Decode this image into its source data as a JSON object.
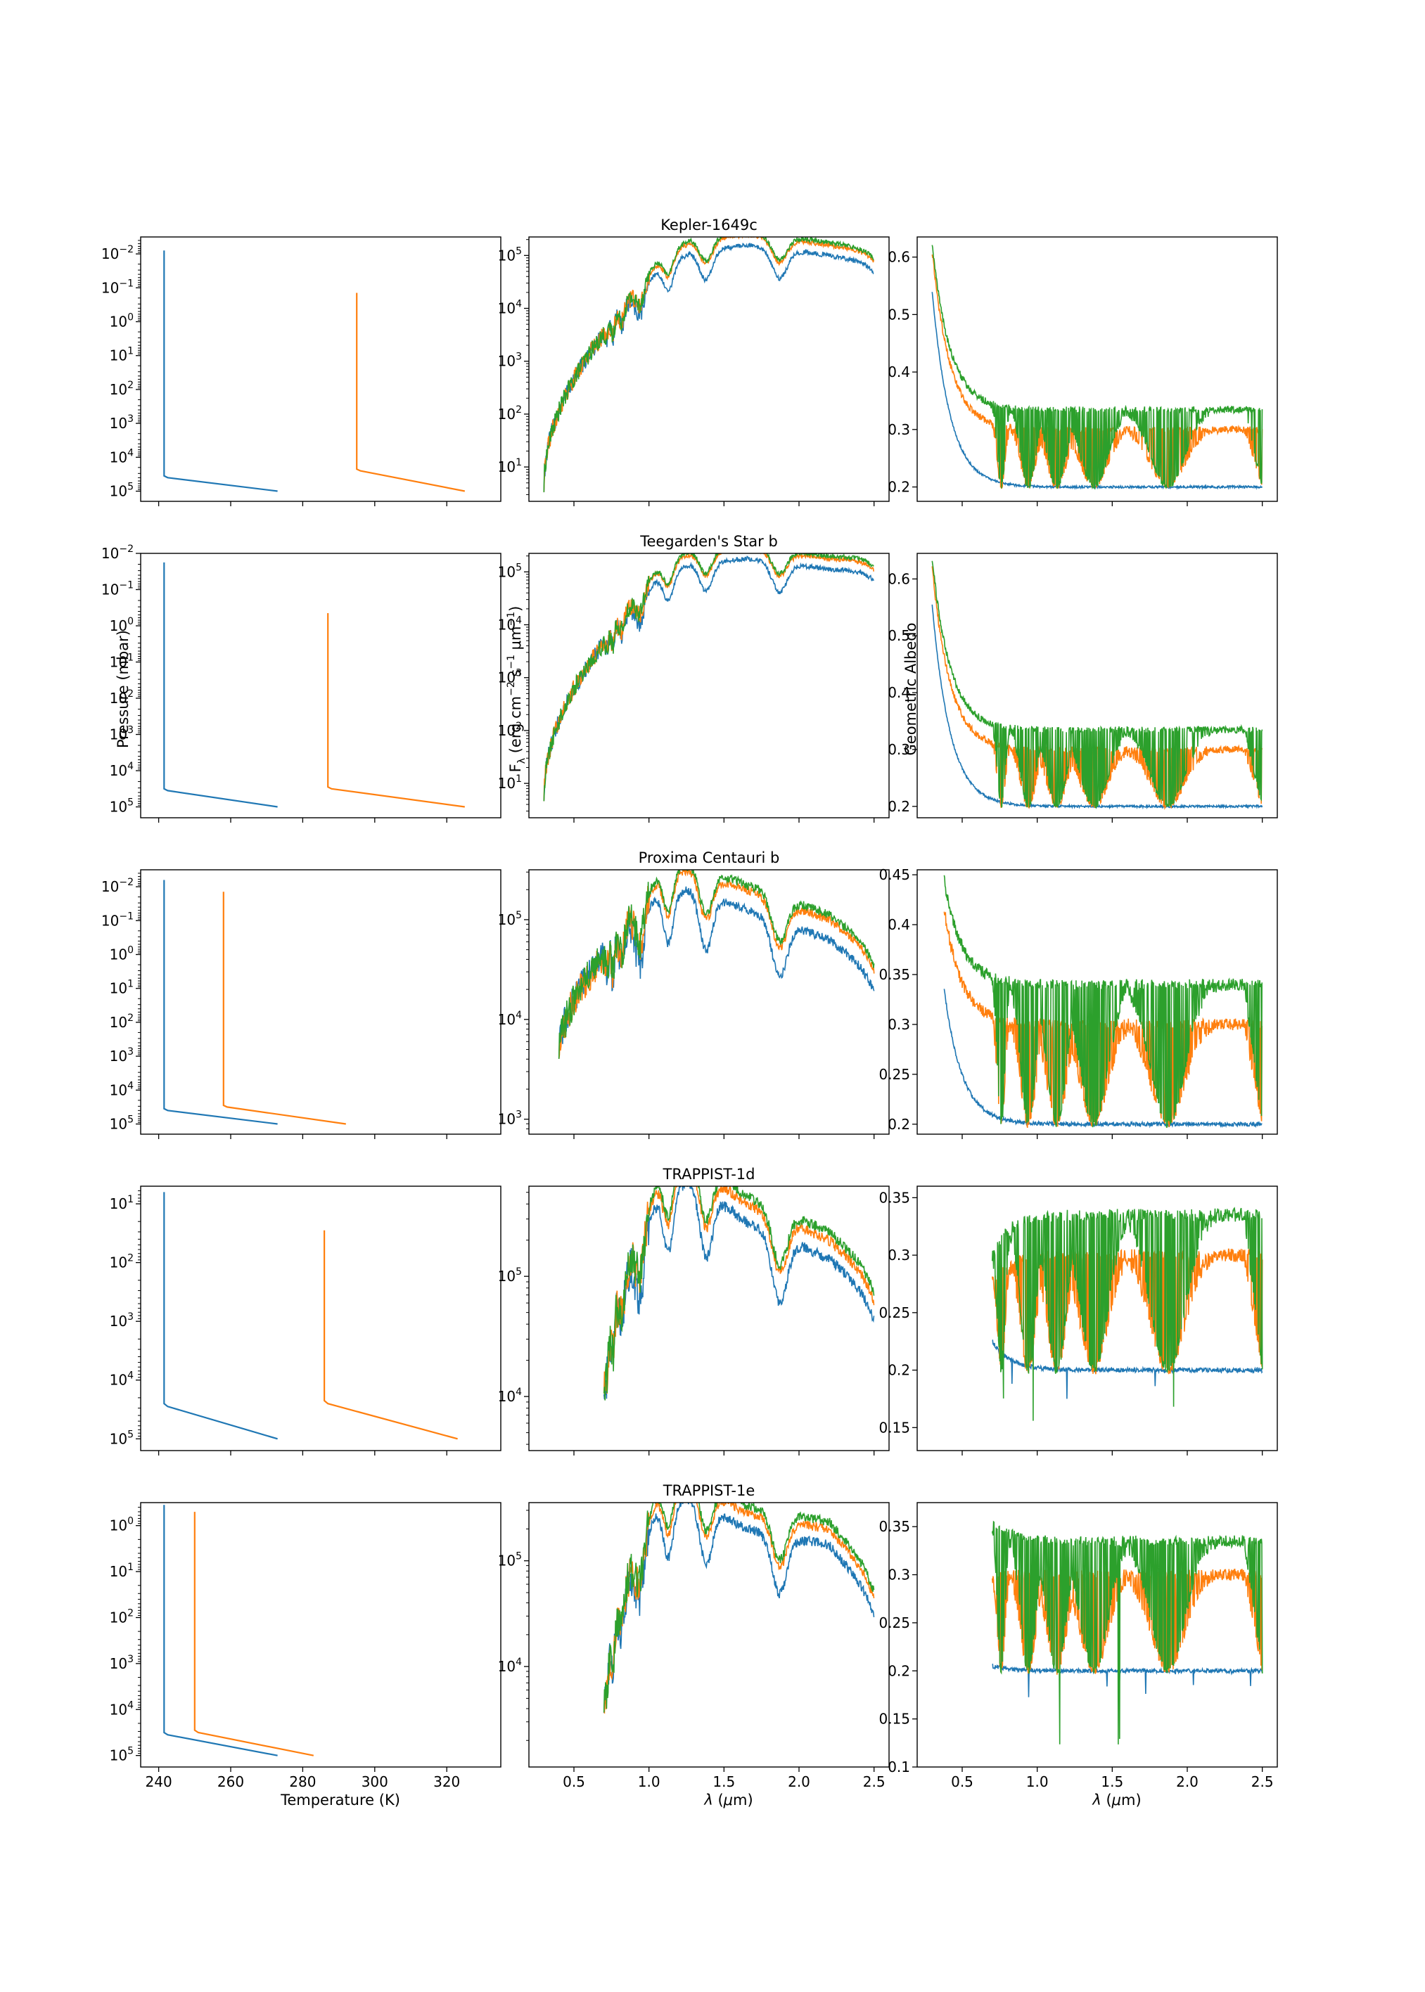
{
  "colors": {
    "series1": "#1f77b4",
    "series2": "#ff7f0e",
    "series3": "#2ca02c",
    "axes": "#000000"
  },
  "shared_labels": {
    "pressure_ylabel": "Pressure (mbar)",
    "flux_ylabel": "F_λ (erg cm^-2 s^-1 μm^-1)",
    "albedo_ylabel": "Geometric Albedo",
    "temperature_xlabel": "Temperature (K)",
    "wavelength_xlabel": "λ (μm)"
  },
  "chart_data": [
    {
      "row": 0,
      "col": 0,
      "type": "line",
      "title": "",
      "xlim": [
        235,
        335
      ],
      "ylog": true,
      "yinvert": true,
      "ylim_exp": [
        -2.5,
        5.3
      ],
      "yticks_exp": [
        -2,
        -1,
        0,
        1,
        2,
        3,
        4,
        5
      ],
      "xticks": [
        240,
        260,
        280,
        300,
        320
      ],
      "show_xticklabels": false,
      "series": [
        {
          "T": [
            241.5,
            241.5,
            242.5,
            273
          ],
          "p_exp": [
            -2.1,
            4.55,
            4.6,
            5
          ]
        },
        {
          "T": [
            295,
            295,
            296,
            325
          ],
          "p_exp": [
            -0.85,
            4.35,
            4.4,
            5
          ]
        }
      ]
    },
    {
      "row": 0,
      "col": 1,
      "type": "line",
      "title": "Kepler-1649c",
      "ylog": true,
      "xlim": [
        0.2,
        2.6
      ],
      "ylim_exp": [
        0.35,
        5.35
      ],
      "yticks_exp": [
        1,
        2,
        3,
        4,
        5
      ],
      "xticks": [
        0.5,
        1.0,
        1.5,
        2.0,
        2.5
      ],
      "show_xticklabels": false,
      "lam_min": 0.3,
      "y_start": 0.6,
      "peaks": [
        4.6,
        4.95,
        5.1,
        4.9,
        4.75
      ],
      "tail": 4.75,
      "bright": [
        0.1,
        0.3,
        0.35
      ]
    },
    {
      "row": 0,
      "col": 2,
      "type": "line",
      "title": "",
      "xlim": [
        0.2,
        2.6
      ],
      "ylim": [
        0.175,
        0.635
      ],
      "yticks": [
        0.2,
        0.3,
        0.4,
        0.5,
        0.6
      ],
      "xticks": [
        0.5,
        1.0,
        1.5,
        2.0,
        2.5
      ],
      "show_xticklabels": false,
      "lam_min": 0.3,
      "start": [
        0.54,
        0.61,
        0.62
      ],
      "band_top": [
        0.2,
        0.3,
        0.335
      ],
      "blue_dip": false
    },
    {
      "row": 1,
      "col": 0,
      "type": "line",
      "title": "",
      "xlim": [
        235,
        335
      ],
      "ylog": true,
      "yinvert": true,
      "ylim_exp": [
        -2.0,
        5.3
      ],
      "yticks_exp": [
        -2,
        -1,
        0,
        1,
        2,
        3,
        4,
        5
      ],
      "xticks": [
        240,
        260,
        280,
        300,
        320
      ],
      "show_xticklabels": false,
      "series": [
        {
          "T": [
            241.5,
            241.5,
            242.5,
            273
          ],
          "p_exp": [
            -1.75,
            4.5,
            4.55,
            5
          ]
        },
        {
          "T": [
            287,
            287,
            288,
            325
          ],
          "p_exp": [
            -0.35,
            4.45,
            4.5,
            5
          ]
        }
      ]
    },
    {
      "row": 1,
      "col": 1,
      "type": "line",
      "title": "Teegarden's Star b",
      "ylog": true,
      "xlim": [
        0.2,
        2.6
      ],
      "ylim_exp": [
        0.35,
        5.35
      ],
      "yticks_exp": [
        1,
        2,
        3,
        4,
        5
      ],
      "xticks": [
        0.5,
        1.0,
        1.5,
        2.0,
        2.5
      ],
      "show_xticklabels": false,
      "lam_min": 0.3,
      "y_start": 0.7,
      "peaks": [
        4.75,
        5.05,
        5.15,
        4.95,
        4.85
      ],
      "tail": 4.9,
      "bright": [
        0.1,
        0.3,
        0.35
      ]
    },
    {
      "row": 1,
      "col": 2,
      "type": "line",
      "title": "",
      "xlim": [
        0.2,
        2.6
      ],
      "ylim": [
        0.18,
        0.645
      ],
      "yticks": [
        0.2,
        0.3,
        0.4,
        0.5,
        0.6
      ],
      "xticks": [
        0.5,
        1.0,
        1.5,
        2.0,
        2.5
      ],
      "show_xticklabels": false,
      "lam_min": 0.3,
      "start": [
        0.555,
        0.62,
        0.635
      ],
      "band_top": [
        0.2,
        0.3,
        0.335
      ],
      "blue_dip": false
    },
    {
      "row": 2,
      "col": 0,
      "type": "line",
      "title": "",
      "xlim": [
        235,
        335
      ],
      "ylog": true,
      "yinvert": true,
      "ylim_exp": [
        -2.5,
        5.3
      ],
      "yticks_exp": [
        -2,
        -1,
        0,
        1,
        2,
        3,
        4,
        5
      ],
      "xticks": [
        240,
        260,
        280,
        300,
        320
      ],
      "show_xticklabels": false,
      "series": [
        {
          "T": [
            241.5,
            241.5,
            242.5,
            273
          ],
          "p_exp": [
            -2.2,
            4.55,
            4.6,
            5
          ]
        },
        {
          "T": [
            258,
            258,
            259,
            292
          ],
          "p_exp": [
            -1.85,
            4.45,
            4.5,
            5
          ]
        }
      ]
    },
    {
      "row": 2,
      "col": 1,
      "type": "line",
      "title": "Proxima Centauri b",
      "ylog": true,
      "xlim": [
        0.2,
        2.6
      ],
      "ylim_exp": [
        2.85,
        5.5
      ],
      "yticks_exp": [
        3,
        4,
        5
      ],
      "xticks": [
        0.5,
        1.0,
        1.5,
        2.0,
        2.5
      ],
      "show_xticklabels": false,
      "lam_min": 0.4,
      "y_start": 3.6,
      "peaks": [
        5.1,
        5.15,
        4.95,
        4.65,
        4.55
      ],
      "tail": 4.3,
      "bright": [
        0.15,
        0.35,
        0.4
      ]
    },
    {
      "row": 2,
      "col": 2,
      "type": "line",
      "title": "",
      "xlim": [
        0.2,
        2.6
      ],
      "ylim": [
        0.19,
        0.455
      ],
      "yticks": [
        0.2,
        0.25,
        0.3,
        0.35,
        0.4,
        0.45
      ],
      "xticks": [
        0.5,
        1.0,
        1.5,
        2.0,
        2.5
      ],
      "show_xticklabels": false,
      "lam_min": 0.38,
      "start": [
        0.335,
        0.415,
        0.445
      ],
      "band_top": [
        0.2,
        0.3,
        0.34
      ],
      "blue_dip": false
    },
    {
      "row": 3,
      "col": 0,
      "type": "line",
      "title": "",
      "xlim": [
        235,
        335
      ],
      "ylog": true,
      "yinvert": true,
      "ylim_exp": [
        0.7,
        5.2
      ],
      "yticks_exp": [
        1,
        2,
        3,
        4,
        5
      ],
      "xticks": [
        240,
        260,
        280,
        300,
        320
      ],
      "show_xticklabels": false,
      "series": [
        {
          "T": [
            241.5,
            241.5,
            242.5,
            273
          ],
          "p_exp": [
            0.8,
            4.4,
            4.45,
            5
          ]
        },
        {
          "T": [
            286,
            286,
            287,
            323
          ],
          "p_exp": [
            1.45,
            4.35,
            4.4,
            5
          ]
        }
      ]
    },
    {
      "row": 3,
      "col": 1,
      "type": "line",
      "title": "TRAPPIST-1d",
      "ylog": true,
      "xlim": [
        0.2,
        2.6
      ],
      "ylim_exp": [
        3.55,
        5.75
      ],
      "yticks_exp": [
        4,
        5
      ],
      "xticks": [
        0.5,
        1.0,
        1.5,
        2.0,
        2.5
      ],
      "show_xticklabels": false,
      "lam_min": 0.7,
      "y_start": 4.0,
      "peaks": [
        5.45,
        5.6,
        5.25,
        4.95,
        4.9
      ],
      "tail": 4.6,
      "bright": [
        0.2,
        0.35,
        0.42
      ]
    },
    {
      "row": 3,
      "col": 2,
      "type": "line",
      "title": "",
      "xlim": [
        0.2,
        2.6
      ],
      "ylim": [
        0.13,
        0.36
      ],
      "yticks": [
        0.15,
        0.2,
        0.25,
        0.3,
        0.35
      ],
      "xticks": [
        0.5,
        1.0,
        1.5,
        2.0,
        2.5
      ],
      "show_xticklabels": false,
      "lam_min": 0.7,
      "start": [
        0.225,
        0.28,
        0.3
      ],
      "band_top": [
        0.2,
        0.3,
        0.335
      ],
      "blue_dip": true
    },
    {
      "row": 4,
      "col": 0,
      "type": "line",
      "title": "",
      "xlim": [
        235,
        335
      ],
      "ylog": true,
      "yinvert": true,
      "ylim_exp": [
        -0.5,
        5.25
      ],
      "yticks_exp": [
        0,
        1,
        2,
        3,
        4,
        5
      ],
      "xticks": [
        240,
        260,
        280,
        300,
        320
      ],
      "show_xticklabels": true,
      "series": [
        {
          "T": [
            241.5,
            241.5,
            242.5,
            273
          ],
          "p_exp": [
            -0.45,
            4.5,
            4.55,
            5
          ]
        },
        {
          "T": [
            250,
            250,
            251,
            283
          ],
          "p_exp": [
            -0.3,
            4.45,
            4.5,
            5
          ]
        }
      ]
    },
    {
      "row": 4,
      "col": 1,
      "type": "line",
      "title": "TRAPPIST-1e",
      "ylog": true,
      "xlim": [
        0.2,
        2.6
      ],
      "ylim_exp": [
        3.05,
        5.55
      ],
      "yticks_exp": [
        4,
        5
      ],
      "xticks": [
        0.5,
        1.0,
        1.5,
        2.0,
        2.5
      ],
      "show_xticklabels": true,
      "lam_min": 0.7,
      "y_start": 3.5,
      "peaks": [
        5.3,
        5.4,
        5.1,
        4.95,
        4.95
      ],
      "tail": 4.45,
      "bright": [
        0.2,
        0.35,
        0.42
      ]
    },
    {
      "row": 4,
      "col": 2,
      "type": "line",
      "title": "",
      "xlim": [
        0.2,
        2.6
      ],
      "ylim": [
        0.1,
        0.375
      ],
      "yticks": [
        0.1,
        0.15,
        0.2,
        0.25,
        0.3,
        0.35
      ],
      "xticks": [
        0.5,
        1.0,
        1.5,
        2.0,
        2.5
      ],
      "show_xticklabels": true,
      "lam_min": 0.7,
      "start": [
        0.205,
        0.3,
        0.355
      ],
      "band_top": [
        0.2,
        0.3,
        0.335
      ],
      "blue_dip": true
    }
  ]
}
